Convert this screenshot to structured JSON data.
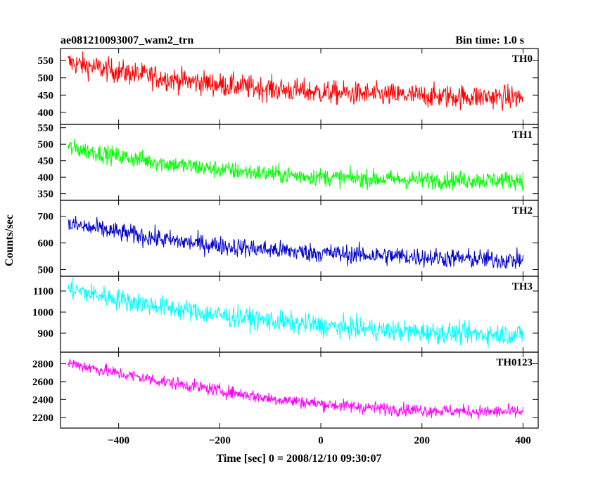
{
  "header": {
    "title": "ae081210093007_wam2_trn",
    "bin_time": "Bin time: 1.0 s"
  },
  "chart_data": {
    "type": "line",
    "ylabel": "Counts/sec",
    "xlabel": "Time [sec] 0 = 2008/12/10 09:30:07",
    "xlim": [
      -515,
      430
    ],
    "x_ticks": [
      -400,
      -200,
      0,
      200,
      400
    ],
    "x_tick_labels": [
      "−400",
      "−200",
      "0",
      "200",
      "400"
    ],
    "x_range": [
      -500,
      400
    ],
    "grid": false,
    "panels": [
      {
        "name": "TH0",
        "color": "#ff0000",
        "ylim": [
          365,
          585
        ],
        "yticks": [
          400,
          450,
          500,
          550
        ],
        "trend_x": [
          -500,
          -400,
          -300,
          -200,
          -100,
          0,
          100,
          200,
          300,
          400
        ],
        "trend_y": [
          545,
          518,
          497,
          480,
          468,
          458,
          452,
          448,
          445,
          443
        ],
        "noise": 38
      },
      {
        "name": "TH1",
        "color": "#00ff00",
        "ylim": [
          330,
          560
        ],
        "yticks": [
          350,
          400,
          450,
          500,
          550
        ],
        "trend_x": [
          -500,
          -400,
          -300,
          -200,
          -100,
          0,
          100,
          200,
          300,
          400
        ],
        "trend_y": [
          490,
          463,
          440,
          423,
          410,
          401,
          395,
          392,
          391,
          392
        ],
        "noise": 30
      },
      {
        "name": "TH2",
        "color": "#0000cc",
        "ylim": [
          475,
          760
        ],
        "yticks": [
          500,
          600,
          700
        ],
        "trend_x": [
          -500,
          -400,
          -300,
          -200,
          -100,
          0,
          100,
          200,
          300,
          400
        ],
        "trend_y": [
          670,
          640,
          610,
          590,
          574,
          562,
          554,
          547,
          540,
          535
        ],
        "noise": 40
      },
      {
        "name": "TH3",
        "color": "#00ffff",
        "ylim": [
          810,
          1170
        ],
        "yticks": [
          900,
          1000,
          1100
        ],
        "trend_x": [
          -500,
          -400,
          -300,
          -200,
          -100,
          0,
          100,
          200,
          300,
          400
        ],
        "trend_y": [
          1110,
          1060,
          1020,
          985,
          958,
          935,
          918,
          905,
          897,
          895
        ],
        "noise": 55
      },
      {
        "name": "TH0123",
        "color": "#ff00ff",
        "ylim": [
          2080,
          2930
        ],
        "yticks": [
          2200,
          2400,
          2600,
          2800
        ],
        "trend_x": [
          -500,
          -400,
          -300,
          -200,
          -100,
          0,
          100,
          200,
          300,
          400
        ],
        "trend_y": [
          2810,
          2690,
          2590,
          2500,
          2410,
          2350,
          2305,
          2280,
          2265,
          2260
        ],
        "noise": 80
      }
    ]
  }
}
